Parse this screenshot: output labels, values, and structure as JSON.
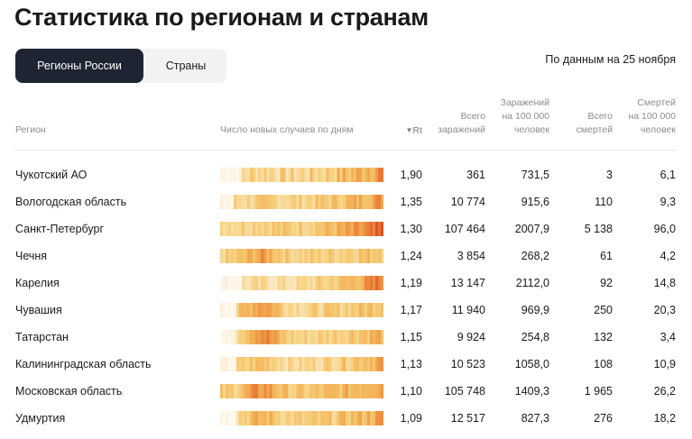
{
  "title": "Статистика по регионам и странам",
  "tabs": [
    {
      "label": "Регионы России",
      "active": true
    },
    {
      "label": "Страны",
      "active": false
    }
  ],
  "as_of": "По данным на 25 ноября",
  "columns": {
    "region": "Регион",
    "daily": "Число новых случаев по дням",
    "rt": "Rt",
    "sort_icon": "triangle-down-icon",
    "total_cases": [
      "Всего",
      "заражений"
    ],
    "cases_per_100k": [
      "Заражений",
      "на 100 000",
      "человек"
    ],
    "total_deaths": [
      "Всего",
      "смертей"
    ],
    "deaths_per_100k": [
      "Смертей",
      "на 100 000",
      "человек"
    ]
  },
  "colors": {
    "heat_low": "#fbe9c9",
    "heat_mid": "#f6c96a",
    "heat_high": "#f08a3a",
    "heat_max": "#c81e15",
    "tab_active_bg": "#1f2433",
    "tab_bg": "#f2f2f2"
  },
  "rows": [
    {
      "region": "Чукотский АО",
      "rt": "1,90",
      "cases": "361",
      "cases_per": "731,5",
      "deaths": "3",
      "deaths_per": "6,1"
    },
    {
      "region": "Вологодская область",
      "rt": "1,35",
      "cases": "10 774",
      "cases_per": "915,6",
      "deaths": "110",
      "deaths_per": "9,3"
    },
    {
      "region": "Санкт-Петербург",
      "rt": "1,30",
      "cases": "107 464",
      "cases_per": "2007,9",
      "deaths": "5 138",
      "deaths_per": "96,0"
    },
    {
      "region": "Чечня",
      "rt": "1,24",
      "cases": "3 854",
      "cases_per": "268,2",
      "deaths": "61",
      "deaths_per": "4,2"
    },
    {
      "region": "Карелия",
      "rt": "1,19",
      "cases": "13 147",
      "cases_per": "2112,0",
      "deaths": "92",
      "deaths_per": "14,8"
    },
    {
      "region": "Чувашия",
      "rt": "1,17",
      "cases": "11 940",
      "cases_per": "969,9",
      "deaths": "250",
      "deaths_per": "20,3"
    },
    {
      "region": "Татарстан",
      "rt": "1,15",
      "cases": "9 924",
      "cases_per": "254,8",
      "deaths": "132",
      "deaths_per": "3,4"
    },
    {
      "region": "Калининградская область",
      "rt": "1,13",
      "cases": "10 523",
      "cases_per": "1058,0",
      "deaths": "108",
      "deaths_per": "10,9"
    },
    {
      "region": "Московская область",
      "rt": "1,10",
      "cases": "105 748",
      "cases_per": "1409,3",
      "deaths": "1 965",
      "deaths_per": "26,2"
    },
    {
      "region": "Удмуртия",
      "rt": "1,09",
      "cases": "12 517",
      "cases_per": "827,3",
      "deaths": "276",
      "deaths_per": "18,2"
    }
  ]
}
